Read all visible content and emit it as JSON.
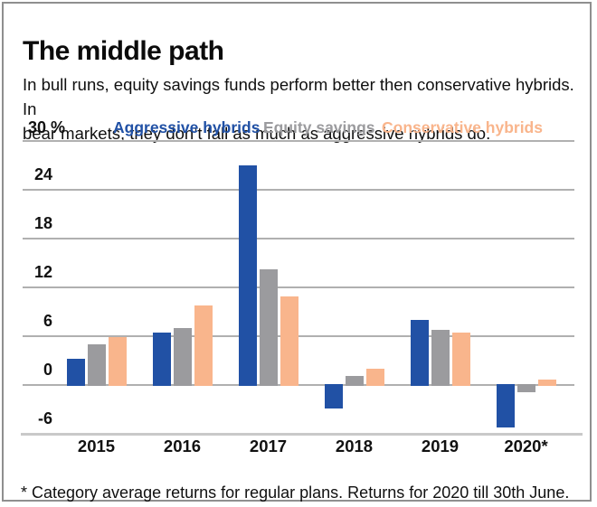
{
  "card": {
    "title": "The middle path",
    "subtitle_lines": [
      "In bull runs, equity savings funds perform better then conservative hybrids. In",
      "bear markets, they don’t fall as much as aggressive hybrids do."
    ],
    "footnote": "* Category average returns for regular plans. Returns for 2020 till 30th June."
  },
  "legend": {
    "unit_label": "30 %"
  },
  "chart_data": {
    "type": "bar",
    "title": "The middle path",
    "categories": [
      "2015",
      "2016",
      "2017",
      "2018",
      "2019",
      "2020*"
    ],
    "series": [
      {
        "name": "Aggressive hybrids",
        "color": "#2151a5",
        "values": [
          3.1,
          6.3,
          26.9,
          -3.0,
          7.9,
          -5.3
        ]
      },
      {
        "name": "Equity savings",
        "color": "#9b9b9e",
        "values": [
          4.9,
          6.9,
          14.1,
          1.0,
          6.7,
          -1.0
        ]
      },
      {
        "name": "Conservative hybrids",
        "color": "#f9b58c",
        "values": [
          5.8,
          9.7,
          10.8,
          1.9,
          6.3,
          0.6
        ]
      }
    ],
    "ylabel": "%",
    "ylim": [
      -7,
      30
    ],
    "yticks": [
      30,
      24,
      18,
      12,
      6,
      0,
      -6
    ],
    "grid": "horizontal",
    "legend_position": "top"
  }
}
